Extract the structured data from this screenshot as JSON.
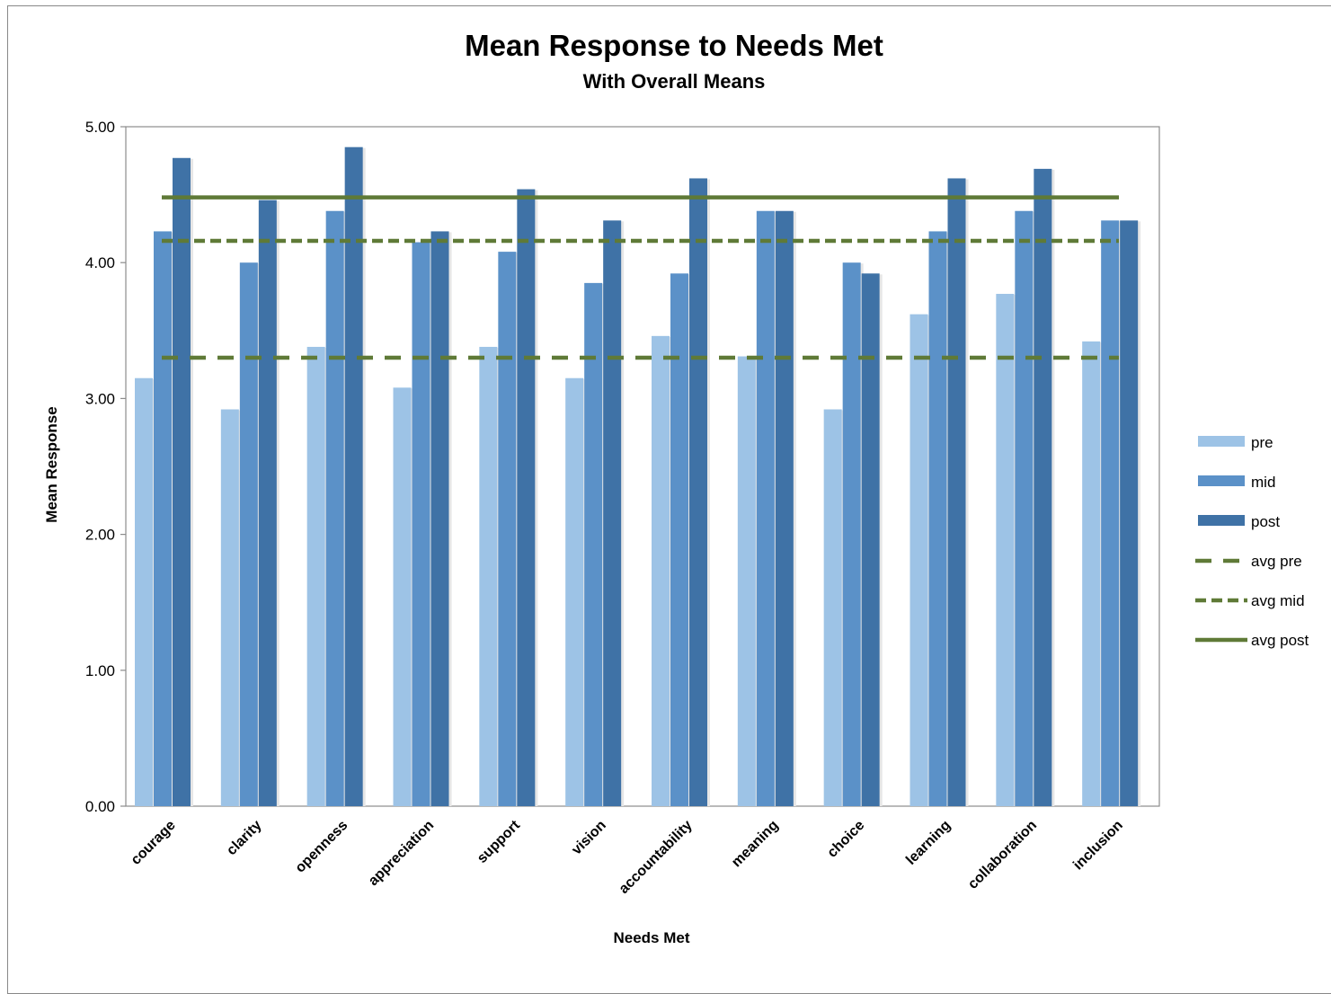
{
  "chart_data": {
    "type": "bar",
    "title": "Mean Response to Needs Met",
    "subtitle": "With Overall Means",
    "xlabel": "Needs Met",
    "ylabel": "Mean Response",
    "ylim": [
      0,
      5
    ],
    "yticks": [
      "0.00",
      "1.00",
      "2.00",
      "3.00",
      "4.00",
      "5.00"
    ],
    "grid": false,
    "legend_position": "right",
    "categories": [
      "courage",
      "clarity",
      "openness",
      "appreciation",
      "support",
      "vision",
      "accountability",
      "meaning",
      "choice",
      "learning",
      "collaboration",
      "inclusion"
    ],
    "series": [
      {
        "name": "pre",
        "color": "#9dc3e6",
        "values": [
          3.15,
          2.92,
          3.38,
          3.08,
          3.38,
          3.15,
          3.46,
          3.31,
          2.92,
          3.62,
          3.77,
          3.42
        ]
      },
      {
        "name": "mid",
        "color": "#5b91c8",
        "values": [
          4.23,
          4.0,
          4.38,
          4.15,
          4.08,
          3.85,
          3.92,
          4.38,
          4.0,
          4.23,
          4.38,
          4.31
        ]
      },
      {
        "name": "post",
        "color": "#3f72a6",
        "values": [
          4.77,
          4.46,
          4.85,
          4.23,
          4.54,
          4.31,
          4.62,
          4.38,
          3.92,
          4.62,
          4.69,
          4.31
        ]
      }
    ],
    "reference_lines": [
      {
        "name": "avg pre",
        "value": 3.3,
        "style": "long-dash",
        "color": "#5f7a37"
      },
      {
        "name": "avg mid",
        "value": 4.16,
        "style": "dash",
        "color": "#5f7a37"
      },
      {
        "name": "avg post",
        "value": 4.48,
        "style": "solid",
        "color": "#5f7a37"
      }
    ]
  }
}
